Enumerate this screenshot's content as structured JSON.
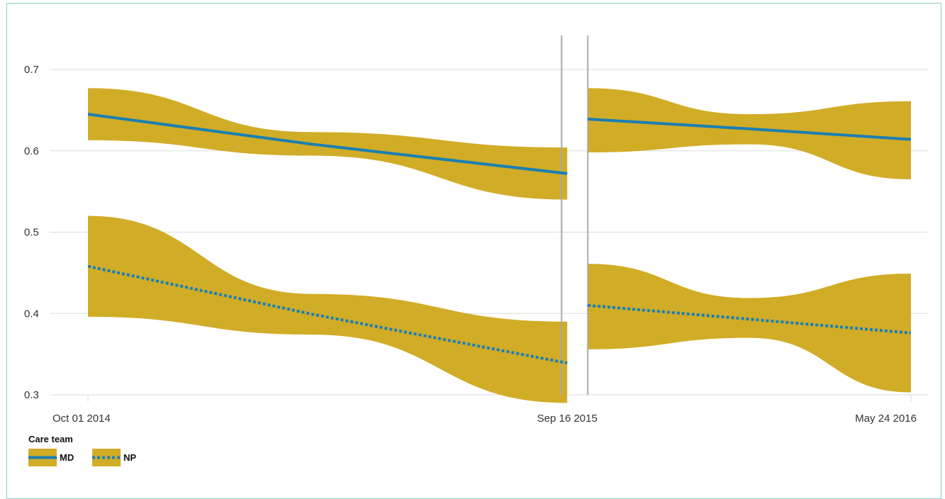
{
  "chart_data": {
    "type": "line",
    "title": "",
    "xlabel": "",
    "ylabel": "",
    "ylim": [
      0.3,
      0.7
    ],
    "y_ticks": [
      0.3,
      0.4,
      0.5,
      0.6,
      0.7
    ],
    "y_tick_labels": [
      "0.3",
      "0.4",
      "0.5",
      "0.6",
      "0.7"
    ],
    "x_tick_labels": [
      "Oct 01 2014",
      "Sep 16 2015",
      "May 24 2016"
    ],
    "x_ticks": [
      "2014-10-01",
      "2015-09-16",
      "2016-05-24"
    ],
    "vertical_markers": [
      "2015-09-16",
      "2015-10-01"
    ],
    "grid": true,
    "legend": {
      "title": "Care team",
      "placement": "bottom-left",
      "entries": [
        "MD",
        "NP"
      ]
    },
    "colors": {
      "band": "#d1ac27",
      "line": "#1a7fb3",
      "grid": "#dddddd",
      "marker": "#a9a9a9",
      "frame": "#8fd1c4"
    },
    "series": [
      {
        "name": "MD",
        "style": "solid",
        "segments": [
          {
            "x": [
              "2014-10-01",
              "2015-03-14",
              "2015-09-16"
            ],
            "y": [
              0.645,
              0.608,
              0.572
            ],
            "lower": [
              0.613,
              0.594,
              0.54
            ],
            "upper": [
              0.677,
              0.623,
              0.604
            ]
          },
          {
            "x": [
              "2015-10-01",
              "2016-01-27",
              "2016-05-24"
            ],
            "y": [
              0.639,
              0.627,
              0.614
            ],
            "lower": [
              0.598,
              0.608,
              0.565
            ],
            "upper": [
              0.677,
              0.645,
              0.661
            ]
          }
        ]
      },
      {
        "name": "NP",
        "style": "dotted",
        "segments": [
          {
            "x": [
              "2014-10-01",
              "2015-03-14",
              "2015-09-16"
            ],
            "y": [
              0.458,
              0.399,
              0.339
            ],
            "lower": [
              0.396,
              0.374,
              0.29
            ],
            "upper": [
              0.52,
              0.424,
              0.39
            ]
          },
          {
            "x": [
              "2015-10-01",
              "2016-01-27",
              "2016-05-24"
            ],
            "y": [
              0.41,
              0.393,
              0.376
            ],
            "lower": [
              0.356,
              0.37,
              0.303
            ],
            "upper": [
              0.461,
              0.419,
              0.449
            ]
          }
        ]
      }
    ]
  }
}
